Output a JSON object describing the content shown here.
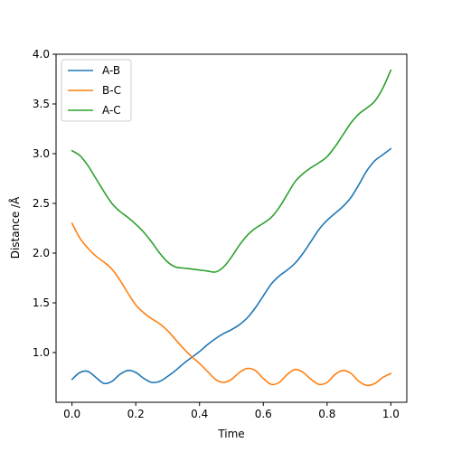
{
  "chart_data": {
    "type": "line",
    "title": "",
    "xlabel": "Time",
    "ylabel": "Distance /Å",
    "xlim": [
      -0.05,
      1.05
    ],
    "ylim": [
      0.5,
      4.0
    ],
    "xticks": [
      "0.0",
      "0.2",
      "0.4",
      "0.6",
      "0.8",
      "1.0"
    ],
    "yticks": [
      "1.0",
      "1.5",
      "2.0",
      "2.5",
      "3.0",
      "3.5",
      "4.0"
    ],
    "grid": false,
    "legend_position": "top-left",
    "x": [
      0.0,
      0.025,
      0.05,
      0.075,
      0.1,
      0.125,
      0.15,
      0.175,
      0.2,
      0.225,
      0.25,
      0.275,
      0.3,
      0.325,
      0.35,
      0.375,
      0.4,
      0.425,
      0.45,
      0.475,
      0.5,
      0.525,
      0.55,
      0.575,
      0.6,
      0.625,
      0.65,
      0.675,
      0.7,
      0.725,
      0.75,
      0.775,
      0.8,
      0.825,
      0.85,
      0.875,
      0.9,
      0.925,
      0.95,
      0.975,
      1.0
    ],
    "series": [
      {
        "name": "A-B",
        "color": "#1f77b4",
        "values": [
          0.73,
          0.8,
          0.81,
          0.75,
          0.69,
          0.71,
          0.78,
          0.82,
          0.8,
          0.74,
          0.7,
          0.71,
          0.76,
          0.82,
          0.89,
          0.95,
          1.01,
          1.08,
          1.14,
          1.19,
          1.23,
          1.28,
          1.35,
          1.45,
          1.57,
          1.69,
          1.77,
          1.83,
          1.9,
          2.0,
          2.12,
          2.24,
          2.33,
          2.4,
          2.47,
          2.56,
          2.69,
          2.83,
          2.93,
          2.99,
          3.05
        ]
      },
      {
        "name": "B-C",
        "color": "#ff7f0e",
        "values": [
          2.3,
          2.15,
          2.05,
          1.97,
          1.91,
          1.84,
          1.73,
          1.6,
          1.48,
          1.4,
          1.34,
          1.29,
          1.22,
          1.13,
          1.04,
          0.96,
          0.89,
          0.81,
          0.73,
          0.7,
          0.73,
          0.8,
          0.84,
          0.82,
          0.74,
          0.68,
          0.7,
          0.78,
          0.83,
          0.8,
          0.73,
          0.68,
          0.7,
          0.78,
          0.82,
          0.79,
          0.71,
          0.67,
          0.69,
          0.75,
          0.79
        ]
      },
      {
        "name": "A-C",
        "color": "#2ca02c",
        "values": [
          3.03,
          2.98,
          2.88,
          2.75,
          2.62,
          2.5,
          2.42,
          2.36,
          2.29,
          2.21,
          2.11,
          2.0,
          1.91,
          1.86,
          1.85,
          1.84,
          1.83,
          1.82,
          1.81,
          1.86,
          1.96,
          2.08,
          2.18,
          2.25,
          2.3,
          2.36,
          2.46,
          2.59,
          2.72,
          2.8,
          2.86,
          2.91,
          2.97,
          3.07,
          3.19,
          3.31,
          3.4,
          3.46,
          3.53,
          3.66,
          3.84
        ]
      }
    ]
  }
}
